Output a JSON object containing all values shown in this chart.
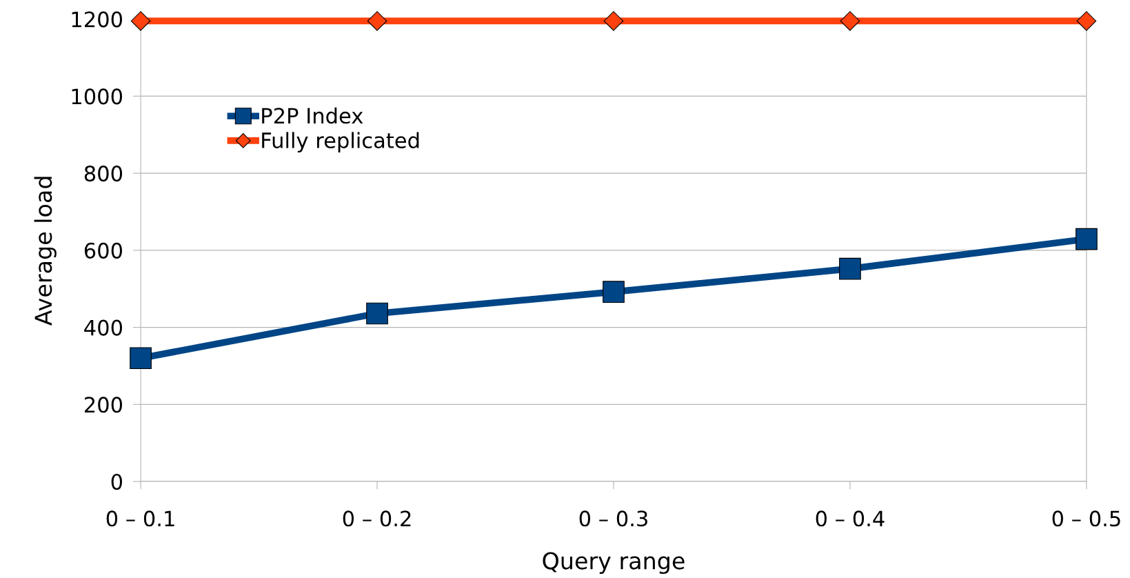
{
  "chart_data": {
    "type": "line",
    "xlabel": "Query range",
    "ylabel": "Average load",
    "categories": [
      "0 – 0.1",
      "0 – 0.2",
      "0 – 0.3",
      "0 – 0.4",
      "0 – 0.5"
    ],
    "series": [
      {
        "name": "P2P Index",
        "color": "#004586",
        "values": [
          320,
          436,
          492,
          552,
          629
        ],
        "marker": "square"
      },
      {
        "name": "Fully replicated",
        "color": "#ff420e",
        "values": [
          1195,
          1195,
          1195,
          1195,
          1195
        ],
        "marker": "diamond"
      }
    ],
    "ylim": [
      0,
      1200
    ],
    "yticks": [
      0,
      200,
      400,
      600,
      800,
      1000,
      1200
    ],
    "grid": "y",
    "legend": "top left",
    "line_style": "solid"
  }
}
